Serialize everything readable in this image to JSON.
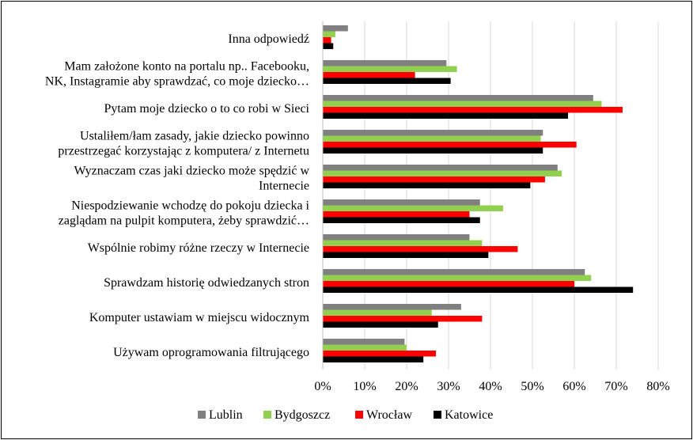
{
  "chart_data": {
    "type": "bar",
    "orientation": "horizontal",
    "title": "",
    "xlabel": "",
    "ylabel": "",
    "xlim": [
      0,
      80
    ],
    "x_ticks": [
      "0%",
      "10%",
      "20%",
      "30%",
      "40%",
      "50%",
      "60%",
      "70%",
      "80%"
    ],
    "grid": "vertical",
    "legend_position": "bottom",
    "categories": [
      [
        "Inna odpowiedź"
      ],
      [
        "Mam założone konto na portalu np.. Facebooku,",
        "NK, Instagramie aby sprawdzać, co moje dziecko…"
      ],
      [
        "Pytam moje dziecko o to co robi w Sieci"
      ],
      [
        "Ustaliłem/łam zasady, jakie dziecko powinno",
        "przestrzegać korzystając z komputera/ z Internetu"
      ],
      [
        "Wyznaczam czas jaki dziecko może spędzić w",
        "Internecie"
      ],
      [
        "Niespodziewanie wchodzę do pokoju dziecka i",
        "zaglądam na pulpit komputera, żeby sprawdzić…"
      ],
      [
        "Wspólnie robimy różne rzeczy w Internecie"
      ],
      [
        "Sprawdzam historię odwiedzanych stron"
      ],
      [
        "Komputer ustawiam w miejscu widocznym"
      ],
      [
        "Używam oprogramowania filtrującego"
      ]
    ],
    "series": [
      {
        "name": "Lublin",
        "color": "#808080",
        "values": [
          6,
          29.5,
          64.5,
          52.5,
          56,
          37.5,
          35,
          62.5,
          33,
          19.5
        ]
      },
      {
        "name": "Bydgoszcz",
        "color": "#92d050",
        "values": [
          3,
          32,
          66.5,
          52,
          57,
          43,
          38,
          64,
          26,
          20
        ]
      },
      {
        "name": "Wrocław",
        "color": "#ff0000",
        "values": [
          2,
          22,
          71.5,
          60.5,
          53,
          35,
          46.5,
          60,
          38,
          27
        ]
      },
      {
        "name": "Katowice",
        "color": "#000000",
        "values": [
          2.5,
          30.5,
          58.5,
          52.5,
          49.5,
          37.5,
          39.5,
          74,
          27.5,
          24
        ]
      }
    ]
  }
}
